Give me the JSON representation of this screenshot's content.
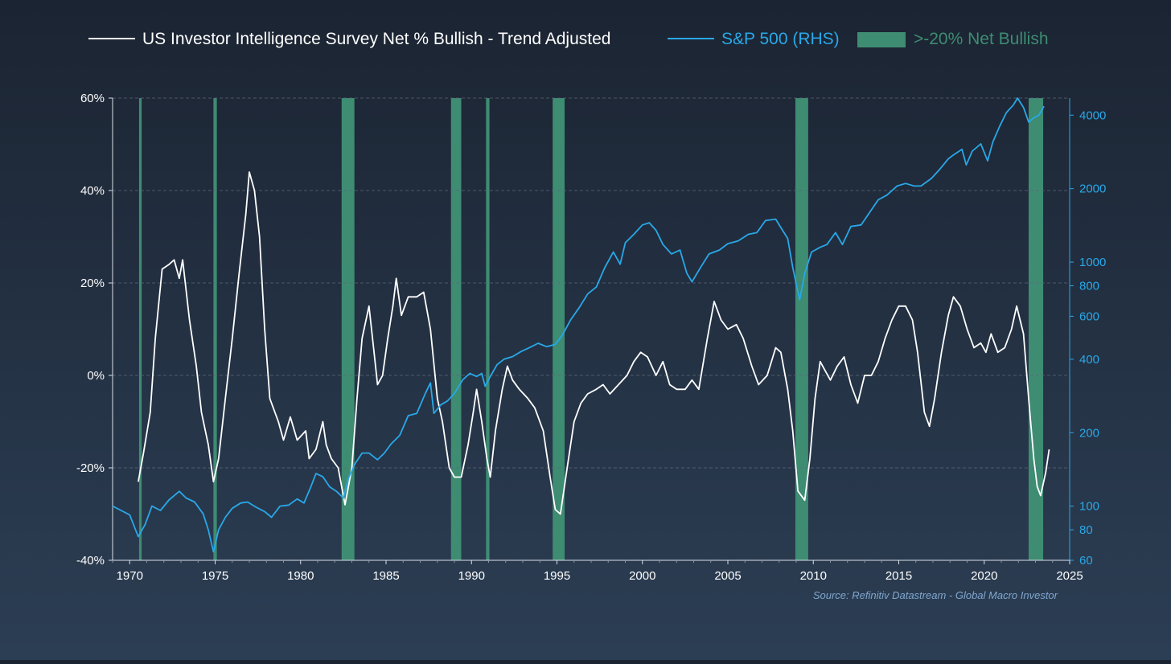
{
  "chart_data": {
    "type": "line",
    "legend": {
      "placement": "top",
      "items": [
        {
          "label": "US Investor Intelligence Survey Net % Bullish - Trend Adjusted",
          "kind": "line",
          "color": "#ffffff"
        },
        {
          "label": "S&P 500 (RHS)",
          "kind": "line",
          "color": "#29a8e8"
        },
        {
          "label": ">-20% Net Bullish",
          "kind": "band",
          "color": "#3e8c72"
        }
      ]
    },
    "source": "Source: Refinitiv Datastream - Global Macro Investor",
    "x_axis": {
      "range": [
        1969,
        2025
      ],
      "ticks": [
        "1970",
        "1975",
        "1980",
        "1985",
        "1990",
        "1995",
        "2000",
        "2005",
        "2010",
        "2015",
        "2020",
        "2025"
      ]
    },
    "y_left": {
      "range": [
        -40,
        60
      ],
      "unit": "%",
      "ticks": [
        "-40%",
        "-20%",
        "0%",
        "20%",
        "40%",
        "60%"
      ]
    },
    "y_right": {
      "scale": "log",
      "range": [
        60,
        4700
      ],
      "ticks": [
        "60",
        "80",
        "100",
        "200",
        "400",
        "600",
        "800",
        "1000",
        "2000",
        "4000"
      ]
    },
    "grid": "horizontal dashed",
    "bands": [
      [
        1970.55,
        1970.7
      ],
      [
        1974.9,
        1975.1
      ],
      [
        1982.4,
        1983.15
      ],
      [
        1988.8,
        1989.4
      ],
      [
        1990.85,
        1991.05
      ],
      [
        1994.75,
        1995.45
      ],
      [
        2008.95,
        2009.7
      ],
      [
        2022.6,
        2023.45
      ]
    ],
    "series": [
      {
        "name": "US Investor Intelligence Survey Net % Bullish - Trend Adjusted",
        "axis": "left",
        "color": "#ffffff",
        "points": [
          [
            1970.5,
            -23
          ],
          [
            1970.8,
            -17
          ],
          [
            1971.2,
            -8
          ],
          [
            1971.5,
            8
          ],
          [
            1971.9,
            23
          ],
          [
            1972.3,
            24
          ],
          [
            1972.6,
            25
          ],
          [
            1972.9,
            21
          ],
          [
            1973.1,
            25
          ],
          [
            1973.5,
            12
          ],
          [
            1973.9,
            2
          ],
          [
            1974.2,
            -8
          ],
          [
            1974.6,
            -15
          ],
          [
            1974.9,
            -23
          ],
          [
            1975.2,
            -18
          ],
          [
            1975.6,
            -5
          ],
          [
            1976.0,
            8
          ],
          [
            1976.4,
            22
          ],
          [
            1976.8,
            35
          ],
          [
            1977.0,
            44
          ],
          [
            1977.3,
            40
          ],
          [
            1977.6,
            30
          ],
          [
            1977.9,
            10
          ],
          [
            1978.2,
            -5
          ],
          [
            1978.7,
            -10
          ],
          [
            1979.0,
            -14
          ],
          [
            1979.4,
            -9
          ],
          [
            1979.8,
            -14
          ],
          [
            1980.3,
            -12
          ],
          [
            1980.5,
            -18
          ],
          [
            1980.9,
            -16
          ],
          [
            1981.3,
            -10
          ],
          [
            1981.5,
            -15
          ],
          [
            1981.8,
            -18
          ],
          [
            1982.2,
            -20
          ],
          [
            1982.6,
            -28
          ],
          [
            1983.0,
            -20
          ],
          [
            1983.3,
            -5
          ],
          [
            1983.6,
            8
          ],
          [
            1984.0,
            15
          ],
          [
            1984.3,
            5
          ],
          [
            1984.5,
            -2
          ],
          [
            1984.8,
            0
          ],
          [
            1985.1,
            8
          ],
          [
            1985.4,
            15
          ],
          [
            1985.6,
            21
          ],
          [
            1985.9,
            13
          ],
          [
            1986.3,
            17
          ],
          [
            1986.8,
            17
          ],
          [
            1987.2,
            18
          ],
          [
            1987.6,
            10
          ],
          [
            1988.0,
            -5
          ],
          [
            1988.3,
            -10
          ],
          [
            1988.7,
            -20
          ],
          [
            1989.0,
            -22
          ],
          [
            1989.4,
            -22
          ],
          [
            1989.8,
            -15
          ],
          [
            1990.1,
            -8
          ],
          [
            1990.3,
            -3
          ],
          [
            1990.6,
            -10
          ],
          [
            1990.9,
            -18
          ],
          [
            1991.1,
            -22
          ],
          [
            1991.4,
            -12
          ],
          [
            1991.8,
            -3
          ],
          [
            1992.1,
            2
          ],
          [
            1992.4,
            -1
          ],
          [
            1992.8,
            -3
          ],
          [
            1993.3,
            -5
          ],
          [
            1993.7,
            -7
          ],
          [
            1994.2,
            -12
          ],
          [
            1994.6,
            -22
          ],
          [
            1994.9,
            -29
          ],
          [
            1995.2,
            -30
          ],
          [
            1995.6,
            -20
          ],
          [
            1996.0,
            -10
          ],
          [
            1996.4,
            -6
          ],
          [
            1996.8,
            -4
          ],
          [
            1997.3,
            -3
          ],
          [
            1997.7,
            -2
          ],
          [
            1998.1,
            -4
          ],
          [
            1998.6,
            -2
          ],
          [
            1999.1,
            0
          ],
          [
            1999.5,
            3
          ],
          [
            1999.9,
            5
          ],
          [
            2000.3,
            4
          ],
          [
            2000.8,
            0
          ],
          [
            2001.2,
            3
          ],
          [
            2001.6,
            -2
          ],
          [
            2002.0,
            -3
          ],
          [
            2002.5,
            -3
          ],
          [
            2002.9,
            -1
          ],
          [
            2003.3,
            -3
          ],
          [
            2003.8,
            8
          ],
          [
            2004.2,
            16
          ],
          [
            2004.6,
            12
          ],
          [
            2005.0,
            10
          ],
          [
            2005.5,
            11
          ],
          [
            2005.9,
            8
          ],
          [
            2006.4,
            2
          ],
          [
            2006.8,
            -2
          ],
          [
            2007.3,
            0
          ],
          [
            2007.8,
            6
          ],
          [
            2008.1,
            5
          ],
          [
            2008.5,
            -3
          ],
          [
            2008.8,
            -12
          ],
          [
            2009.1,
            -25
          ],
          [
            2009.5,
            -27
          ],
          [
            2009.8,
            -18
          ],
          [
            2010.1,
            -5
          ],
          [
            2010.4,
            3
          ],
          [
            2010.7,
            1
          ],
          [
            2011.0,
            -1
          ],
          [
            2011.4,
            2
          ],
          [
            2011.8,
            4
          ],
          [
            2012.2,
            -2
          ],
          [
            2012.6,
            -6
          ],
          [
            2013.0,
            0
          ],
          [
            2013.4,
            0
          ],
          [
            2013.8,
            3
          ],
          [
            2014.2,
            8
          ],
          [
            2014.6,
            12
          ],
          [
            2015.0,
            15
          ],
          [
            2015.4,
            15
          ],
          [
            2015.8,
            12
          ],
          [
            2016.1,
            5
          ],
          [
            2016.5,
            -8
          ],
          [
            2016.8,
            -11
          ],
          [
            2017.1,
            -5
          ],
          [
            2017.5,
            5
          ],
          [
            2017.9,
            13
          ],
          [
            2018.2,
            17
          ],
          [
            2018.6,
            15
          ],
          [
            2019.0,
            10
          ],
          [
            2019.4,
            6
          ],
          [
            2019.8,
            7
          ],
          [
            2020.1,
            5
          ],
          [
            2020.4,
            9
          ],
          [
            2020.8,
            5
          ],
          [
            2021.2,
            6
          ],
          [
            2021.6,
            10
          ],
          [
            2021.9,
            15
          ],
          [
            2022.3,
            9
          ],
          [
            2022.6,
            -5
          ],
          [
            2022.9,
            -18
          ],
          [
            2023.1,
            -24
          ],
          [
            2023.3,
            -26
          ],
          [
            2023.6,
            -21
          ],
          [
            2023.8,
            -16
          ]
        ]
      },
      {
        "name": "S&P 500 (RHS)",
        "axis": "right",
        "color": "#29a8e8",
        "points": [
          [
            1969.0,
            100
          ],
          [
            1969.5,
            96
          ],
          [
            1970.0,
            92
          ],
          [
            1970.5,
            75
          ],
          [
            1970.9,
            84
          ],
          [
            1971.3,
            100
          ],
          [
            1971.8,
            96
          ],
          [
            1972.3,
            106
          ],
          [
            1972.9,
            115
          ],
          [
            1973.3,
            108
          ],
          [
            1973.8,
            104
          ],
          [
            1974.3,
            93
          ],
          [
            1974.6,
            80
          ],
          [
            1974.9,
            65
          ],
          [
            1975.2,
            80
          ],
          [
            1975.6,
            90
          ],
          [
            1976.0,
            98
          ],
          [
            1976.5,
            103
          ],
          [
            1976.9,
            104
          ],
          [
            1977.4,
            99
          ],
          [
            1977.9,
            95
          ],
          [
            1978.3,
            90
          ],
          [
            1978.8,
            100
          ],
          [
            1979.3,
            101
          ],
          [
            1979.8,
            107
          ],
          [
            1980.2,
            103
          ],
          [
            1980.6,
            120
          ],
          [
            1980.9,
            136
          ],
          [
            1981.3,
            132
          ],
          [
            1981.7,
            120
          ],
          [
            1982.1,
            115
          ],
          [
            1982.5,
            108
          ],
          [
            1982.8,
            130
          ],
          [
            1983.2,
            150
          ],
          [
            1983.6,
            165
          ],
          [
            1984.0,
            165
          ],
          [
            1984.5,
            155
          ],
          [
            1984.9,
            165
          ],
          [
            1985.3,
            180
          ],
          [
            1985.8,
            195
          ],
          [
            1986.3,
            235
          ],
          [
            1986.8,
            240
          ],
          [
            1987.3,
            290
          ],
          [
            1987.6,
            320
          ],
          [
            1987.8,
            240
          ],
          [
            1988.2,
            260
          ],
          [
            1988.6,
            270
          ],
          [
            1989.0,
            290
          ],
          [
            1989.5,
            330
          ],
          [
            1989.9,
            350
          ],
          [
            1990.3,
            340
          ],
          [
            1990.6,
            350
          ],
          [
            1990.8,
            310
          ],
          [
            1991.1,
            340
          ],
          [
            1991.5,
            380
          ],
          [
            1991.9,
            400
          ],
          [
            1992.4,
            410
          ],
          [
            1992.9,
            430
          ],
          [
            1993.5,
            450
          ],
          [
            1993.9,
            465
          ],
          [
            1994.4,
            450
          ],
          [
            1994.9,
            460
          ],
          [
            1995.3,
            500
          ],
          [
            1995.8,
            580
          ],
          [
            1996.3,
            650
          ],
          [
            1996.8,
            740
          ],
          [
            1997.3,
            790
          ],
          [
            1997.8,
            950
          ],
          [
            1998.3,
            1100
          ],
          [
            1998.7,
            980
          ],
          [
            1999.0,
            1200
          ],
          [
            1999.5,
            1300
          ],
          [
            2000.0,
            1420
          ],
          [
            2000.4,
            1450
          ],
          [
            2000.8,
            1350
          ],
          [
            2001.2,
            1180
          ],
          [
            2001.7,
            1080
          ],
          [
            2002.2,
            1120
          ],
          [
            2002.6,
            900
          ],
          [
            2002.9,
            830
          ],
          [
            2003.4,
            950
          ],
          [
            2003.9,
            1080
          ],
          [
            2004.5,
            1120
          ],
          [
            2005.0,
            1190
          ],
          [
            2005.6,
            1220
          ],
          [
            2006.2,
            1300
          ],
          [
            2006.7,
            1320
          ],
          [
            2007.2,
            1480
          ],
          [
            2007.8,
            1500
          ],
          [
            2008.2,
            1350
          ],
          [
            2008.5,
            1250
          ],
          [
            2008.8,
            950
          ],
          [
            2009.2,
            700
          ],
          [
            2009.5,
            900
          ],
          [
            2009.9,
            1100
          ],
          [
            2010.4,
            1150
          ],
          [
            2010.8,
            1180
          ],
          [
            2011.3,
            1320
          ],
          [
            2011.7,
            1180
          ],
          [
            2012.2,
            1400
          ],
          [
            2012.8,
            1420
          ],
          [
            2013.3,
            1600
          ],
          [
            2013.8,
            1800
          ],
          [
            2014.3,
            1880
          ],
          [
            2014.9,
            2050
          ],
          [
            2015.4,
            2100
          ],
          [
            2015.9,
            2050
          ],
          [
            2016.3,
            2050
          ],
          [
            2016.9,
            2200
          ],
          [
            2017.4,
            2400
          ],
          [
            2017.9,
            2650
          ],
          [
            2018.2,
            2750
          ],
          [
            2018.7,
            2900
          ],
          [
            2018.95,
            2500
          ],
          [
            2019.3,
            2850
          ],
          [
            2019.8,
            3050
          ],
          [
            2020.2,
            2600
          ],
          [
            2020.5,
            3100
          ],
          [
            2020.9,
            3600
          ],
          [
            2021.3,
            4100
          ],
          [
            2021.7,
            4400
          ],
          [
            2021.95,
            4700
          ],
          [
            2022.3,
            4300
          ],
          [
            2022.6,
            3750
          ],
          [
            2022.9,
            3900
          ],
          [
            2023.2,
            4000
          ],
          [
            2023.5,
            4350
          ]
        ]
      }
    ]
  }
}
